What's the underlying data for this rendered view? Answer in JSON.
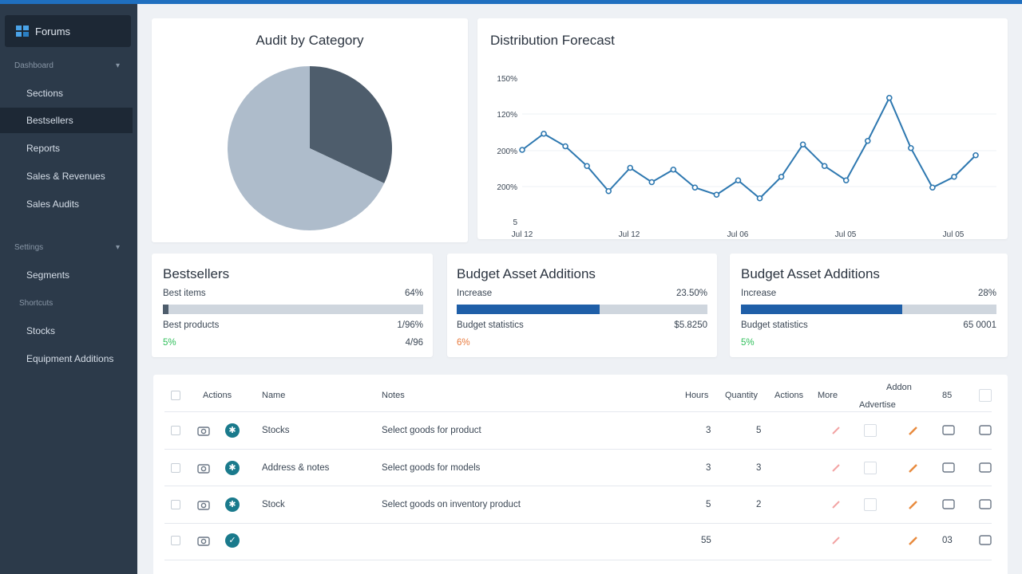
{
  "sidebar": {
    "brand": "Forums",
    "section1": "Dashboard",
    "section2": "Settings",
    "section3": "Shortcuts",
    "items": [
      {
        "label": "Sections"
      },
      {
        "label": "Bestsellers"
      },
      {
        "label": "Reports"
      },
      {
        "label": "Sales & Revenues"
      },
      {
        "label": "Sales Audits"
      },
      {
        "label": "Segments"
      },
      {
        "label": "Stocks"
      },
      {
        "label": "Equipment Additions"
      }
    ]
  },
  "pie": {
    "title": "Audit by Category",
    "chart_data": {
      "type": "pie",
      "values": [
        0.32,
        0.68
      ],
      "colors": [
        "#4e5d6c",
        "#aebccb"
      ]
    }
  },
  "line": {
    "title": "Distribution Forecast",
    "chart_data": {
      "type": "line",
      "y_ticks": [
        "150%",
        "120%",
        "200%",
        "200%",
        "5"
      ],
      "x_ticks": [
        "Jul 12",
        "Jul 12",
        "Jul 06",
        "Jul 05",
        "Jul 05"
      ],
      "values": [
        2.0,
        2.45,
        2.1,
        1.55,
        0.85,
        1.5,
        1.1,
        1.45,
        0.95,
        0.75,
        1.15,
        0.65,
        1.25,
        2.15,
        1.55,
        1.15,
        2.25,
        3.45,
        2.05,
        0.95,
        1.25,
        1.85
      ],
      "color": "#2e78b0"
    }
  },
  "stats": [
    {
      "title": "Bestsellers",
      "row1_label": "Best items",
      "row1_value": "64%",
      "row2_label": "Best products",
      "row2_value": "1/96%",
      "row3_tag": "5%",
      "row3_value": "4/96",
      "tag_color": "#2fbf5a",
      "fill": 0.02,
      "fill_color": "#4e5d6c"
    },
    {
      "title": "Budget Asset Additions",
      "row1_label": "Increase",
      "row1_value": "23.50%",
      "row2_label": "Budget statistics",
      "row2_value": "$5.8250",
      "row3_tag": "6%",
      "row3_value": "",
      "tag_color": "#e87a3d",
      "fill": 0.57,
      "fill_color": "#1f5fa8"
    },
    {
      "title": "Budget Asset Additions",
      "row1_label": "Increase",
      "row1_value": "28%",
      "row2_label": "Budget statistics",
      "row2_value": "65 0001",
      "row3_tag": "5%",
      "row3_value": "",
      "tag_color": "#2fbf5a",
      "fill": 0.63,
      "fill_color": "#1f5fa8"
    }
  ],
  "table": {
    "headers": {
      "actions": "Actions",
      "name": "Name",
      "notes": "Notes",
      "hours": "Hours",
      "quantity": "Quantity",
      "actions2": "Actions",
      "more": "More",
      "addon": "Addon",
      "advertise": "Advertise",
      "count": "85"
    },
    "rows": [
      {
        "name": "Stocks",
        "notes": "Select goods for product",
        "v1": "3",
        "v2": "5",
        "last": ""
      },
      {
        "name": "Address & notes",
        "notes": "Select goods for models",
        "v1": "3",
        "v2": "3",
        "last": ""
      },
      {
        "name": "Stock",
        "notes": "Select goods on inventory product",
        "v1": "5",
        "v2": "2",
        "last": ""
      },
      {
        "name": "",
        "notes": "",
        "v1": "55",
        "v2": "",
        "last": "03"
      }
    ]
  }
}
